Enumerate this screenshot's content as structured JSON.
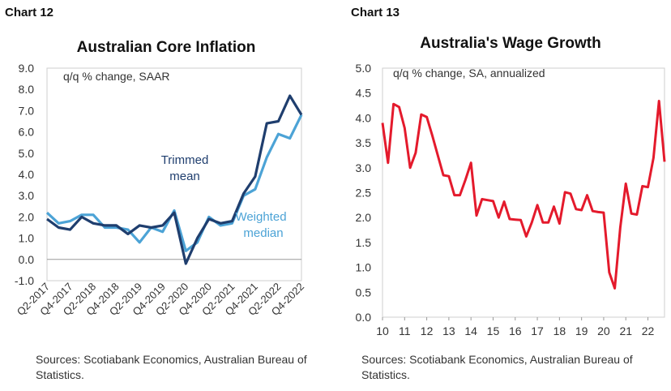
{
  "chart_data": [
    {
      "type": "line",
      "label": "Chart 12",
      "title": "Australian Core Inflation",
      "note": "q/q % change, SAAR",
      "ylim": [
        -1.0,
        9.0
      ],
      "yticks": [
        "-1.0",
        "0.0",
        "1.0",
        "2.0",
        "3.0",
        "4.0",
        "5.0",
        "6.0",
        "7.0",
        "8.0",
        "9.0"
      ],
      "x": [
        "Q2-2017",
        "Q3-2017",
        "Q4-2017",
        "Q1-2018",
        "Q2-2018",
        "Q3-2018",
        "Q4-2018",
        "Q1-2019",
        "Q2-2019",
        "Q3-2019",
        "Q4-2019",
        "Q1-2020",
        "Q2-2020",
        "Q3-2020",
        "Q4-2020",
        "Q1-2021",
        "Q2-2021",
        "Q3-2021",
        "Q4-2021",
        "Q1-2022",
        "Q2-2022",
        "Q3-2022",
        "Q4-2022"
      ],
      "xticklabels": [
        "Q2-2017",
        "Q4-2017",
        "Q2-2018",
        "Q4-2018",
        "Q2-2019",
        "Q4-2019",
        "Q2-2020",
        "Q4-2020",
        "Q2-2021",
        "Q4-2021",
        "Q2-2022",
        "Q4-2022"
      ],
      "series": [
        {
          "name": "Trimmed mean",
          "line1": "Trimmed",
          "line2": "mean",
          "color": "#1f3e6e",
          "values": [
            1.9,
            1.5,
            1.4,
            2.0,
            1.7,
            1.6,
            1.6,
            1.2,
            1.6,
            1.5,
            1.6,
            2.2,
            -0.2,
            1.0,
            1.9,
            1.7,
            1.8,
            3.1,
            3.9,
            6.4,
            6.5,
            7.7,
            6.8
          ]
        },
        {
          "name": "Weighted median",
          "line1": "Weighted",
          "line2": "median",
          "color": "#4ca3d6",
          "values": [
            2.2,
            1.7,
            1.8,
            2.1,
            2.1,
            1.5,
            1.5,
            1.4,
            0.8,
            1.5,
            1.3,
            2.3,
            0.4,
            0.8,
            2.0,
            1.6,
            1.7,
            3.0,
            3.3,
            4.8,
            5.9,
            5.7,
            6.8
          ]
        }
      ],
      "source": "Sources: Scotiabank Economics, Australian Bureau of Statistics."
    },
    {
      "type": "line",
      "label": "Chart 13",
      "title": "Australia's Wage Growth",
      "note": "q/q % change, SA, annualized",
      "ylim": [
        0.0,
        5.0
      ],
      "yticks": [
        "0.0",
        "0.5",
        "1.0",
        "1.5",
        "2.0",
        "2.5",
        "3.0",
        "3.5",
        "4.0",
        "4.5",
        "5.0"
      ],
      "xlim": [
        10,
        22.75
      ],
      "xticks": [
        "10",
        "11",
        "12",
        "13",
        "14",
        "15",
        "16",
        "17",
        "18",
        "19",
        "20",
        "21",
        "22"
      ],
      "series": [
        {
          "name": "Wage growth",
          "color": "#e41a2c",
          "x": [
            10,
            10.25,
            10.5,
            10.75,
            11,
            11.25,
            11.5,
            11.75,
            12,
            12.25,
            12.5,
            12.75,
            13,
            13.25,
            13.5,
            13.75,
            14,
            14.25,
            14.5,
            14.75,
            15,
            15.25,
            15.5,
            15.75,
            16,
            16.25,
            16.5,
            16.75,
            17,
            17.25,
            17.5,
            17.75,
            18,
            18.25,
            18.5,
            18.75,
            19,
            19.25,
            19.5,
            19.75,
            20,
            20.25,
            20.5,
            20.75,
            21,
            21.25,
            21.5,
            21.75,
            22,
            22.25,
            22.5,
            22.75
          ],
          "values": [
            3.9,
            3.1,
            4.28,
            4.22,
            3.8,
            3.0,
            3.3,
            4.07,
            4.02,
            3.65,
            3.25,
            2.85,
            2.83,
            2.45,
            2.45,
            2.76,
            3.1,
            2.04,
            2.37,
            2.35,
            2.33,
            2.0,
            2.32,
            1.97,
            1.96,
            1.95,
            1.62,
            1.9,
            2.25,
            1.9,
            1.9,
            2.22,
            1.88,
            2.51,
            2.48,
            2.17,
            2.15,
            2.45,
            2.13,
            2.11,
            2.1,
            0.9,
            0.58,
            1.8,
            2.68,
            2.08,
            2.06,
            2.63,
            2.61,
            3.2,
            4.34,
            3.12
          ]
        }
      ],
      "source": "Sources: Scotiabank Economics, Australian Bureau of Statistics."
    }
  ]
}
